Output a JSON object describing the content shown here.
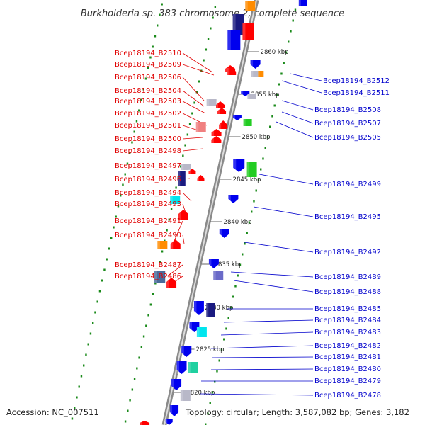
{
  "title": "Burkholderia sp. 383 chromosome 2, complete sequence",
  "accession": "Accession: NC_007511",
  "topology": "Topology: circular; Length: 3,587,082 bp; Genes: 3,182",
  "colors": {
    "forward": "#ff0000",
    "reverse": "#0000ee",
    "backbone": "#808080",
    "ticks": "#1a8a1a",
    "label_left": "#e00000",
    "label_right": "#0000cc"
  },
  "scale_labels": [
    {
      "text": "2860 kbp",
      "bp": 2860000
    },
    {
      "text": "2855 kbp",
      "bp": 2855000
    },
    {
      "text": "2850 kbp",
      "bp": 2850000
    },
    {
      "text": "2845 kbp",
      "bp": 2845000
    },
    {
      "text": "2840 kbp",
      "bp": 2840000
    },
    {
      "text": "2835 kbp",
      "bp": 2835000
    },
    {
      "text": "2830 kbp",
      "bp": 2830000
    },
    {
      "text": "2825 kbp",
      "bp": 2825000
    },
    {
      "text": "2820 kbp",
      "bp": 2820000
    }
  ],
  "genes_left": [
    {
      "name": "Bcep18194_B2510",
      "color": "red"
    },
    {
      "name": "Bcep18194_B2509",
      "color": "red"
    },
    {
      "name": "Bcep18194_B2506",
      "color": "red"
    },
    {
      "name": "Bcep18194_B2504",
      "color": "grey"
    },
    {
      "name": "Bcep18194_B2503",
      "color": "grey"
    },
    {
      "name": "Bcep18194_B2502",
      "color": "pink"
    },
    {
      "name": "Bcep18194_B2501",
      "color": "red"
    },
    {
      "name": "Bcep18194_B2500",
      "color": "red"
    },
    {
      "name": "Bcep18194_B2498",
      "color": "red"
    },
    {
      "name": "Bcep18194_B2497",
      "color": "grey"
    },
    {
      "name": "Bcep18194_B2496",
      "color": "navy"
    },
    {
      "name": "Bcep18194_B2494",
      "color": "cyan"
    },
    {
      "name": "Bcep18194_B2493",
      "color": "red"
    },
    {
      "name": "Bcep18194_B2491",
      "color": "red"
    },
    {
      "name": "Bcep18194_B2490",
      "color": "orange"
    },
    {
      "name": "Bcep18194_B2487",
      "color": "mixed"
    },
    {
      "name": "Bcep18194_B2486",
      "color": "red"
    }
  ],
  "genes_right": [
    {
      "name": "Bcep18194_B2512",
      "color": "blue"
    },
    {
      "name": "Bcep18194_B2511",
      "color": "orange"
    },
    {
      "name": "Bcep18194_B2508",
      "color": "grey"
    },
    {
      "name": "Bcep18194_B2507",
      "color": "blue"
    },
    {
      "name": "Bcep18194_B2505",
      "color": "green"
    },
    {
      "name": "Bcep18194_B2499",
      "color": "blue"
    },
    {
      "name": "Bcep18194_B2495",
      "color": "blue"
    },
    {
      "name": "Bcep18194_B2492",
      "color": "blue"
    },
    {
      "name": "Bcep18194_B2489",
      "color": "blue"
    },
    {
      "name": "Bcep18194_B2488",
      "color": "slate"
    },
    {
      "name": "Bcep18194_B2485",
      "color": "navy"
    },
    {
      "name": "Bcep18194_B2484",
      "color": "blue"
    },
    {
      "name": "Bcep18194_B2483",
      "color": "cyan"
    },
    {
      "name": "Bcep18194_B2482",
      "color": "blue"
    },
    {
      "name": "Bcep18194_B2481",
      "color": "blue"
    },
    {
      "name": "Bcep18194_B2480",
      "color": "teal"
    },
    {
      "name": "Bcep18194_B2479",
      "color": "blue"
    },
    {
      "name": "Bcep18194_B2478",
      "color": "blue"
    }
  ]
}
